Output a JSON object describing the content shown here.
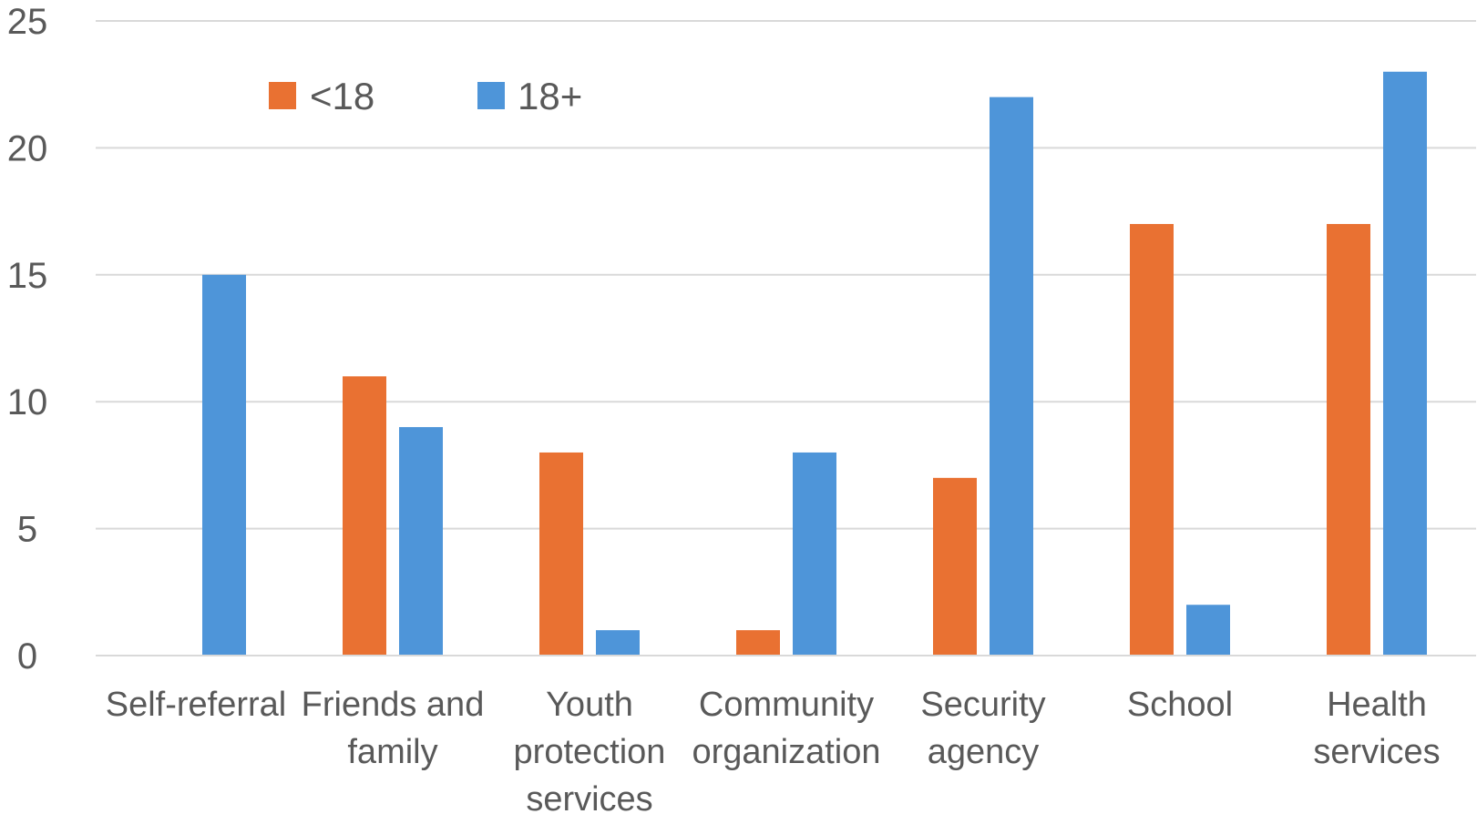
{
  "chart_data": {
    "type": "bar",
    "title": "",
    "xlabel": "",
    "ylabel": "",
    "ylim": [
      0,
      25
    ],
    "yticks": [
      0,
      5,
      10,
      15,
      20,
      25
    ],
    "grid": true,
    "legend_position": "top-left",
    "categories": [
      [
        "Self-referral"
      ],
      [
        "Friends and",
        "family"
      ],
      [
        "Youth",
        "protection",
        "services"
      ],
      [
        "Community",
        "organization"
      ],
      [
        "Security",
        "agency"
      ],
      [
        "School"
      ],
      [
        "Health",
        "services"
      ]
    ],
    "series": [
      {
        "name": "<18",
        "color": "#E97132",
        "values": [
          0,
          11,
          8,
          1,
          7,
          17,
          17
        ]
      },
      {
        "name": "18+",
        "color": "#4E95D9",
        "values": [
          15,
          9,
          1,
          8,
          22,
          2,
          23
        ]
      }
    ]
  }
}
